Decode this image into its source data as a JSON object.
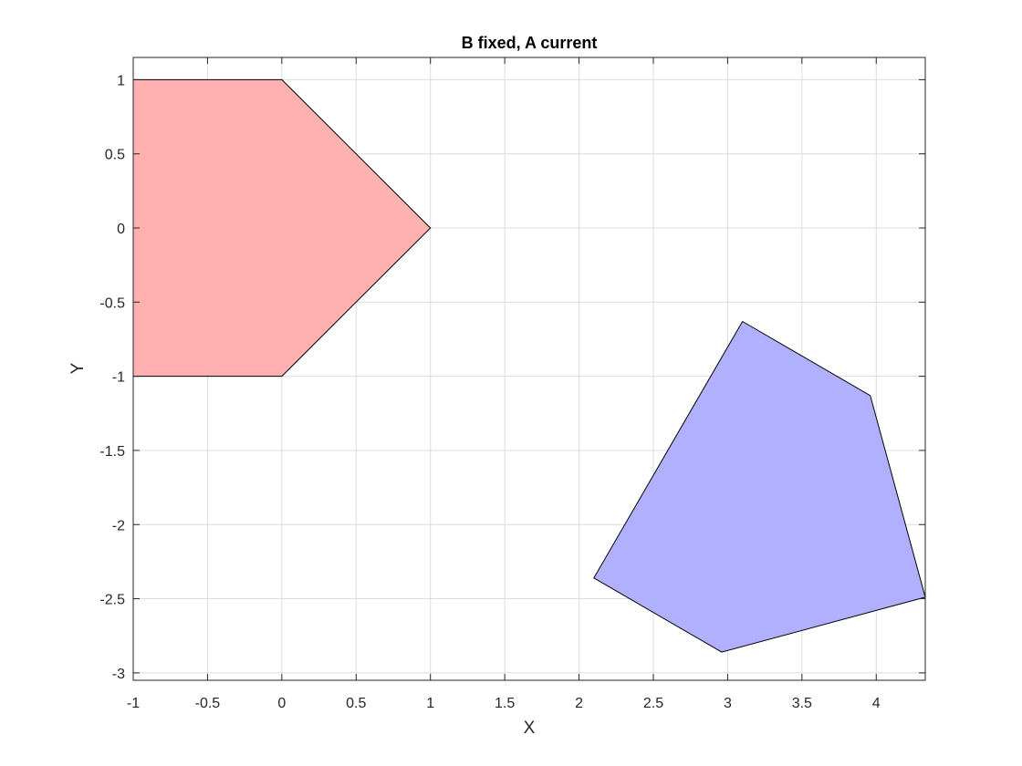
{
  "chart_data": {
    "type": "area",
    "title": "B fixed, A current",
    "xlabel": "X",
    "ylabel": "Y",
    "xlim": [
      -1,
      4.33
    ],
    "ylim": [
      -3.05,
      1.15
    ],
    "grid": true,
    "xticks": [
      -1,
      -0.5,
      0,
      0.5,
      1,
      1.5,
      2,
      2.5,
      3,
      3.5,
      4
    ],
    "xtick_labels": [
      "-1",
      "-0.5",
      "0",
      "0.5",
      "1",
      "1.5",
      "2",
      "2.5",
      "3",
      "3.5",
      "4"
    ],
    "yticks": [
      1,
      0.5,
      0,
      -0.5,
      -1,
      -1.5,
      -2,
      -2.5,
      -3
    ],
    "ytick_labels": [
      "1",
      "0.5",
      "0",
      "-0.5",
      "-1",
      "-1.5",
      "-2",
      "-2.5",
      "-3"
    ],
    "series": [
      {
        "color": "#ffb0b0",
        "points": [
          [
            -1,
            1
          ],
          [
            0,
            1
          ],
          [
            1,
            0
          ],
          [
            0,
            -1
          ],
          [
            -1,
            -1
          ]
        ]
      },
      {
        "color": "#b0b0ff",
        "points": [
          [
            3.1,
            -0.63
          ],
          [
            3.96,
            -1.13
          ],
          [
            4.33,
            -2.49
          ],
          [
            2.96,
            -2.86
          ],
          [
            2.1,
            -2.36
          ]
        ]
      }
    ]
  }
}
